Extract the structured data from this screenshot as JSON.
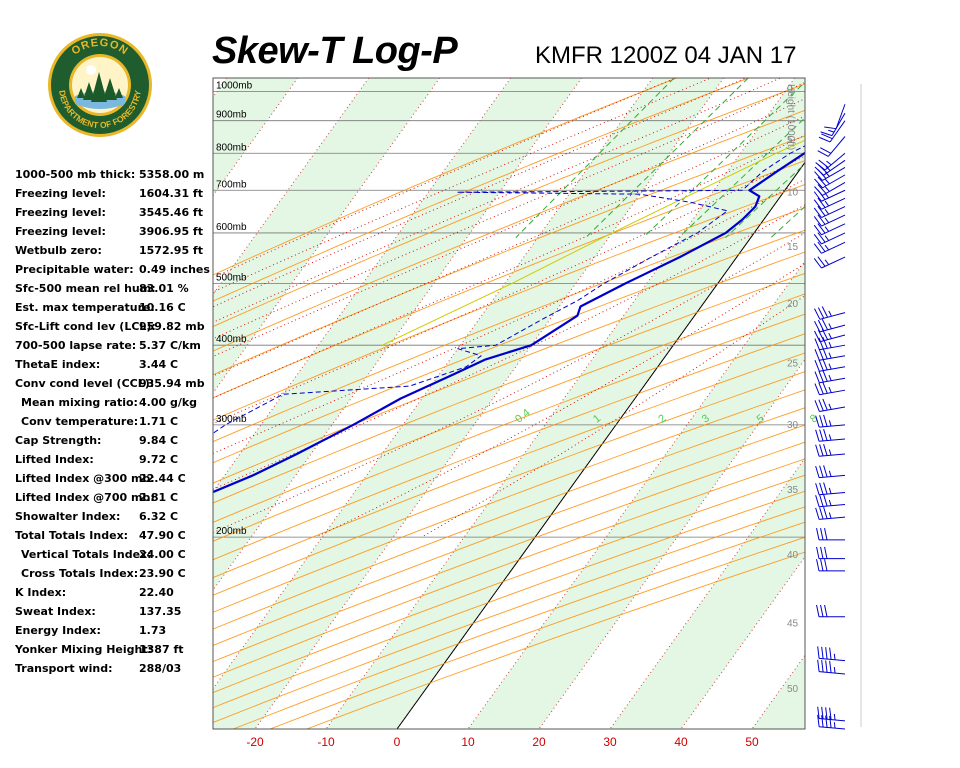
{
  "header": {
    "title": "Skew-T Log-P",
    "subtitle": "KMFR 1200Z 04 JAN 17"
  },
  "logo": {
    "top_text": "OREGON",
    "bottom_text": "DEPARTMENT OF FORESTRY",
    "colors": {
      "ring": "#1f5c2e",
      "gold": "#e8b828",
      "tree": "#1d5a2a"
    }
  },
  "stats": [
    {
      "label": "1000-500 mb thick:",
      "value": "5358.00 m"
    },
    {
      "label": "Freezing level:",
      "value": "1604.31 ft"
    },
    {
      "label": "Freezing level:",
      "value": "3545.46 ft"
    },
    {
      "label": "Freezing level:",
      "value": "3906.95 ft"
    },
    {
      "label": "Wetbulb zero:",
      "value": "1572.95 ft"
    },
    {
      "label": "Precipitable water:",
      "value": "0.49 inches"
    },
    {
      "label": "Sfc-500 mean rel hum:",
      "value": "83.01 %"
    },
    {
      "label": "Est. max temperature:",
      "value": "10.16 C"
    },
    {
      "label": "Sfc-Lift cond lev (LCL):",
      "value": "959.82 mb"
    },
    {
      "label": "700-500 lapse rate:",
      "value": "5.37 C/km"
    },
    {
      "label": "ThetaE index:",
      "value": "3.44 C"
    },
    {
      "label": "Conv cond level (CCL):",
      "value": "935.94 mb"
    },
    {
      "label": "Mean mixing ratio:",
      "value": "4.00 g/kg",
      "indent": true
    },
    {
      "label": "Conv temperature:",
      "value": "1.71 C",
      "indent": true
    },
    {
      "label": "Cap Strength:",
      "value": "9.84 C"
    },
    {
      "label": "Lifted Index:",
      "value": "9.72 C"
    },
    {
      "label": "Lifted Index @300 mb:",
      "value": "22.44 C"
    },
    {
      "label": "Lifted Index @700 mb:",
      "value": "2.81 C"
    },
    {
      "label": "Showalter Index:",
      "value": "6.32 C"
    },
    {
      "label": "Total Totals Index:",
      "value": "47.90 C"
    },
    {
      "label": "Vertical Totals Index:",
      "value": "24.00 C",
      "indent": true
    },
    {
      "label": "Cross Totals Index:",
      "value": "23.90 C",
      "indent": true
    },
    {
      "label": "K Index:",
      "value": "22.40"
    },
    {
      "label": "Sweat Index:",
      "value": "137.35"
    },
    {
      "label": "Energy Index:",
      "value": "1.73"
    },
    {
      "label": "Yonker Mixing Height:",
      "value": "1387 ft"
    },
    {
      "label": "Transport wind:",
      "value": "288/03"
    }
  ],
  "colors": {
    "temperature": "#0000cc",
    "dewpoint": "#0000cc",
    "parcel": "#cccc00",
    "dry_adiabat": "#ff8c00",
    "moist_adiabat": "#cc0000",
    "mixing_ratio": "#33aa33",
    "isotherm_band": "#e4f7e4",
    "isobar": "#777777",
    "tick_label": "#cc0000",
    "height_label": "#888888",
    "mixing_label": "#55cc55"
  },
  "chart_data": {
    "type": "skew-t",
    "title": "Skew-T Log-P",
    "subtitle": "KMFR 1200Z 04 JAN 17",
    "x_ticks": [
      -20,
      -10,
      0,
      10,
      20,
      30,
      40,
      50
    ],
    "xlim": [
      -27,
      57
    ],
    "pressure_labels": [
      {
        "p": 1000,
        "label": "1000mb"
      },
      {
        "p": 900,
        "label": "900mb"
      },
      {
        "p": 800,
        "label": "800mb"
      },
      {
        "p": 700,
        "label": "700mb"
      },
      {
        "p": 600,
        "label": "600mb"
      },
      {
        "p": 500,
        "label": "500mb"
      },
      {
        "p": 400,
        "label": "400mb"
      },
      {
        "p": 300,
        "label": "300mb"
      },
      {
        "p": 200,
        "label": "200mb"
      }
    ],
    "ylim_mb": [
      1050,
      100
    ],
    "height_axis_title": "Height (1000ft)",
    "height_ticks": [
      {
        "kft": 0,
        "p": 1013
      },
      {
        "kft": 5,
        "p": 843
      },
      {
        "kft": 10,
        "p": 697
      },
      {
        "kft": 15,
        "p": 572
      },
      {
        "kft": 20,
        "p": 466
      },
      {
        "kft": 25,
        "p": 376
      },
      {
        "kft": 30,
        "p": 301
      },
      {
        "kft": 35,
        "p": 238
      },
      {
        "kft": 40,
        "p": 188
      },
      {
        "kft": 45,
        "p": 147
      },
      {
        "kft": 50,
        "p": 116
      }
    ],
    "mixing_ratio_labels": [
      "0.4",
      "1",
      "2",
      "3",
      "5",
      "8"
    ],
    "mixing_ratio_values": [
      0.4,
      1,
      2,
      3,
      5,
      8
    ],
    "temperature": [
      {
        "p": 955,
        "t": 6
      },
      {
        "p": 925,
        "t": 4.5
      },
      {
        "p": 900,
        "t": 3.5
      },
      {
        "p": 850,
        "t": 1
      },
      {
        "p": 800,
        "t": -1
      },
      {
        "p": 750,
        "t": -3
      },
      {
        "p": 700,
        "t": -5
      },
      {
        "p": 685,
        "t": -3
      },
      {
        "p": 660,
        "t": -2.5
      },
      {
        "p": 630,
        "t": -3
      },
      {
        "p": 600,
        "t": -4
      },
      {
        "p": 550,
        "t": -8
      },
      {
        "p": 500,
        "t": -13
      },
      {
        "p": 460,
        "t": -17
      },
      {
        "p": 445,
        "t": -16.5
      },
      {
        "p": 400,
        "t": -20
      },
      {
        "p": 380,
        "t": -25
      },
      {
        "p": 360,
        "t": -28
      },
      {
        "p": 330,
        "t": -33
      },
      {
        "p": 300,
        "t": -37
      },
      {
        "p": 270,
        "t": -42
      },
      {
        "p": 250,
        "t": -46
      },
      {
        "p": 235,
        "t": -50
      },
      {
        "p": 220,
        "t": -52
      },
      {
        "p": 200,
        "t": -56
      },
      {
        "p": 180,
        "t": -58
      },
      {
        "p": 160,
        "t": -60
      },
      {
        "p": 150,
        "t": -61
      },
      {
        "p": 130,
        "t": -64
      },
      {
        "p": 115,
        "t": -65
      }
    ],
    "dewpoint": [
      {
        "p": 955,
        "t": 5.5
      },
      {
        "p": 925,
        "t": 4
      },
      {
        "p": 900,
        "t": 3
      },
      {
        "p": 850,
        "t": 0
      },
      {
        "p": 800,
        "t": -3
      },
      {
        "p": 750,
        "t": -5
      },
      {
        "p": 700,
        "t": -6
      },
      {
        "p": 697,
        "t": -27
      },
      {
        "p": 695,
        "t": -46
      },
      {
        "p": 690,
        "t": -20
      },
      {
        "p": 670,
        "t": -12
      },
      {
        "p": 650,
        "t": -6
      },
      {
        "p": 600,
        "t": -8
      },
      {
        "p": 550,
        "t": -12
      },
      {
        "p": 500,
        "t": -16
      },
      {
        "p": 470,
        "t": -18
      },
      {
        "p": 440,
        "t": -21
      },
      {
        "p": 400,
        "t": -25
      },
      {
        "p": 395,
        "t": -30
      },
      {
        "p": 385,
        "t": -26
      },
      {
        "p": 370,
        "t": -27
      },
      {
        "p": 345,
        "t": -33
      },
      {
        "p": 335,
        "t": -50
      },
      {
        "p": 300,
        "t": -55
      },
      {
        "p": 280,
        "t": -57
      },
      {
        "p": 250,
        "t": -60
      },
      {
        "p": 220,
        "t": -64
      },
      {
        "p": 200,
        "t": -66
      },
      {
        "p": 160,
        "t": -70
      },
      {
        "p": 140,
        "t": -70
      },
      {
        "p": 120,
        "t": -72
      }
    ],
    "parcel": [
      {
        "p": 955,
        "t": 6
      },
      {
        "p": 900,
        "t": 2
      },
      {
        "p": 800,
        "t": -5
      },
      {
        "p": 700,
        "t": -12
      },
      {
        "p": 600,
        "t": -20
      },
      {
        "p": 500,
        "t": -29
      },
      {
        "p": 400,
        "t": -41
      }
    ],
    "winds": [
      {
        "p": 955,
        "dir": 200,
        "spd": 10
      },
      {
        "p": 925,
        "dir": 210,
        "spd": 15
      },
      {
        "p": 900,
        "dir": 215,
        "spd": 20
      },
      {
        "p": 850,
        "dir": 220,
        "spd": 20
      },
      {
        "p": 800,
        "dir": 230,
        "spd": 25
      },
      {
        "p": 780,
        "dir": 235,
        "spd": 25
      },
      {
        "p": 760,
        "dir": 240,
        "spd": 25
      },
      {
        "p": 740,
        "dir": 240,
        "spd": 25
      },
      {
        "p": 720,
        "dir": 240,
        "spd": 25
      },
      {
        "p": 700,
        "dir": 245,
        "spd": 25
      },
      {
        "p": 680,
        "dir": 245,
        "spd": 25
      },
      {
        "p": 660,
        "dir": 245,
        "spd": 25
      },
      {
        "p": 640,
        "dir": 245,
        "spd": 25
      },
      {
        "p": 620,
        "dir": 245,
        "spd": 25
      },
      {
        "p": 600,
        "dir": 245,
        "spd": 25
      },
      {
        "p": 580,
        "dir": 245,
        "spd": 25
      },
      {
        "p": 550,
        "dir": 245,
        "spd": 25
      },
      {
        "p": 450,
        "dir": 255,
        "spd": 35
      },
      {
        "p": 430,
        "dir": 255,
        "spd": 35
      },
      {
        "p": 415,
        "dir": 255,
        "spd": 35
      },
      {
        "p": 400,
        "dir": 260,
        "spd": 35
      },
      {
        "p": 385,
        "dir": 260,
        "spd": 35
      },
      {
        "p": 370,
        "dir": 260,
        "spd": 35
      },
      {
        "p": 355,
        "dir": 260,
        "spd": 35
      },
      {
        "p": 340,
        "dir": 260,
        "spd": 35
      },
      {
        "p": 320,
        "dir": 260,
        "spd": 35
      },
      {
        "p": 300,
        "dir": 265,
        "spd": 35
      },
      {
        "p": 285,
        "dir": 265,
        "spd": 35
      },
      {
        "p": 270,
        "dir": 265,
        "spd": 35
      },
      {
        "p": 250,
        "dir": 265,
        "spd": 35
      },
      {
        "p": 235,
        "dir": 265,
        "spd": 35
      },
      {
        "p": 225,
        "dir": 265,
        "spd": 35
      },
      {
        "p": 215,
        "dir": 265,
        "spd": 35
      },
      {
        "p": 198,
        "dir": 270,
        "spd": 30
      },
      {
        "p": 185,
        "dir": 270,
        "spd": 30
      },
      {
        "p": 177,
        "dir": 270,
        "spd": 30
      },
      {
        "p": 150,
        "dir": 270,
        "spd": 30
      },
      {
        "p": 128,
        "dir": 275,
        "spd": 45
      },
      {
        "p": 122,
        "dir": 275,
        "spd": 45
      },
      {
        "p": 103,
        "dir": 275,
        "spd": 45
      },
      {
        "p": 100,
        "dir": 275,
        "spd": 45
      }
    ]
  }
}
